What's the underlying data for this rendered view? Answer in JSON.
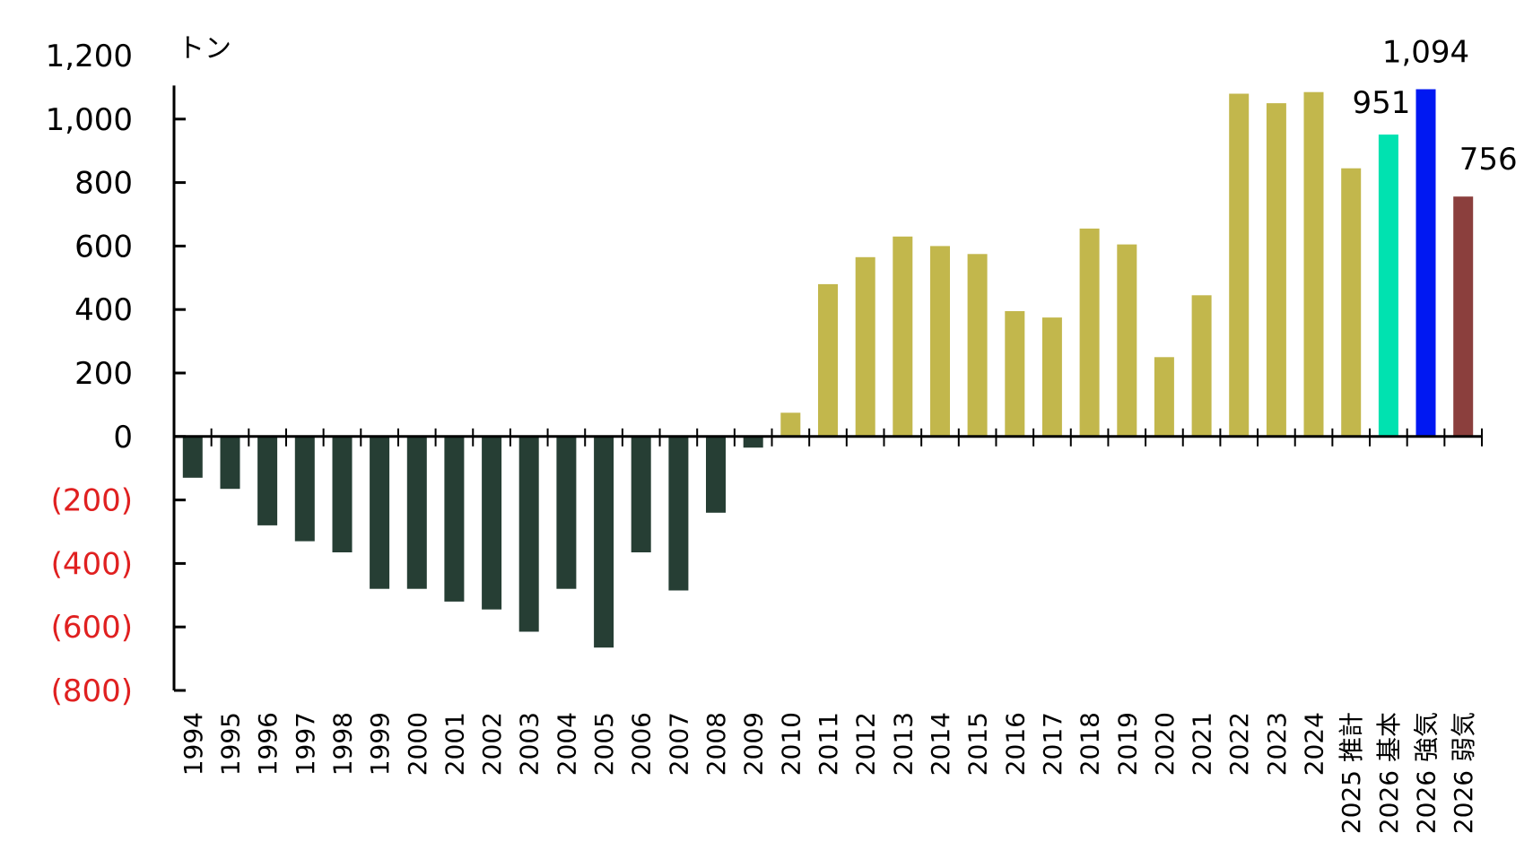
{
  "chart_data": {
    "type": "bar",
    "unit_label": "トン",
    "categories": [
      "1994",
      "1995",
      "1996",
      "1997",
      "1998",
      "1999",
      "2000",
      "2001",
      "2002",
      "2003",
      "2004",
      "2005",
      "2006",
      "2007",
      "2008",
      "2009",
      "2010",
      "2011",
      "2012",
      "2013",
      "2014",
      "2015",
      "2016",
      "2017",
      "2018",
      "2019",
      "2020",
      "2021",
      "2022",
      "2023",
      "2024",
      "2025 推計",
      "2026 基本",
      "2026 強気",
      "2026 弱気"
    ],
    "values": [
      -130,
      -165,
      -280,
      -330,
      -365,
      -480,
      -480,
      -520,
      -545,
      -615,
      -480,
      -665,
      -365,
      -485,
      -240,
      -35,
      75,
      480,
      565,
      630,
      600,
      575,
      395,
      375,
      655,
      605,
      250,
      445,
      1080,
      1050,
      1085,
      845,
      951,
      1094,
      756
    ],
    "colors": [
      "#263e34",
      "#263e34",
      "#263e34",
      "#263e34",
      "#263e34",
      "#263e34",
      "#263e34",
      "#263e34",
      "#263e34",
      "#263e34",
      "#263e34",
      "#263e34",
      "#263e34",
      "#263e34",
      "#263e34",
      "#263e34",
      "#c2b74c",
      "#c2b74c",
      "#c2b74c",
      "#c2b74c",
      "#c2b74c",
      "#c2b74c",
      "#c2b74c",
      "#c2b74c",
      "#c2b74c",
      "#c2b74c",
      "#c2b74c",
      "#c2b74c",
      "#c2b74c",
      "#c2b74c",
      "#c2b74c",
      "#c2b74c",
      "#00e2b0",
      "#0018f2",
      "#8b3f3d"
    ],
    "data_labels": [
      {
        "index": 32,
        "text": "951"
      },
      {
        "index": 33,
        "text": "1,094"
      },
      {
        "index": 34,
        "text": "756"
      }
    ],
    "yticks": [
      {
        "value": 1200,
        "label": "1,200"
      },
      {
        "value": 1000,
        "label": "1,000"
      },
      {
        "value": 800,
        "label": "800"
      },
      {
        "value": 600,
        "label": "600"
      },
      {
        "value": 400,
        "label": "400"
      },
      {
        "value": 200,
        "label": "200"
      },
      {
        "value": 0,
        "label": "0"
      },
      {
        "value": -200,
        "label": "(200)"
      },
      {
        "value": -400,
        "label": "(400)"
      },
      {
        "value": -600,
        "label": "(600)"
      },
      {
        "value": -800,
        "label": "(800)"
      }
    ],
    "ylim": [
      -800,
      1200
    ],
    "negative_label_color": "#e02020",
    "positive_label_color": "#000000",
    "grid": false,
    "legend": "none"
  }
}
